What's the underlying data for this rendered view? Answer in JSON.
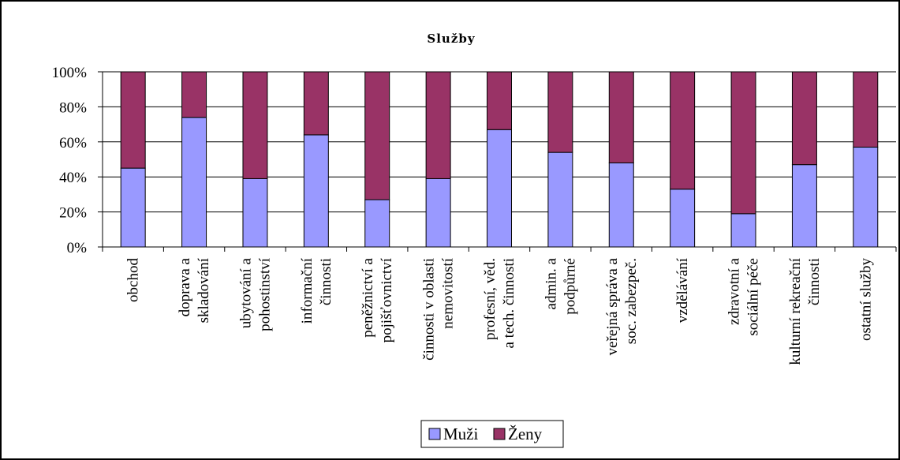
{
  "chart_data": {
    "type": "bar",
    "stacked": true,
    "percent": true,
    "title": "Služby",
    "categories": [
      [
        "obchod"
      ],
      [
        "doprava a",
        "skladování"
      ],
      [
        "ubytování a",
        "pohostinství"
      ],
      [
        "informační",
        "činnosti"
      ],
      [
        "peněžnictví a",
        "pojišťovnictví"
      ],
      [
        "činnosti v oblasti",
        "nemovitostí"
      ],
      [
        "profesní, věd.",
        "a tech. činnosti"
      ],
      [
        "admin. a",
        "podpůrné"
      ],
      [
        "veřejná správa a",
        "soc. zabezpeč."
      ],
      [
        "vzdělávání"
      ],
      [
        "zdravotní a",
        "sociální péče"
      ],
      [
        "kulturní rekreační",
        "činnosti"
      ],
      [
        "ostatní služby"
      ]
    ],
    "series": [
      {
        "name": "Muži",
        "color": "#9999ff",
        "values": [
          45,
          74,
          39,
          64,
          27,
          39,
          67,
          54,
          48,
          33,
          19,
          47,
          57
        ]
      },
      {
        "name": "Ženy",
        "color": "#993366",
        "values": [
          55,
          26,
          61,
          36,
          73,
          61,
          33,
          46,
          52,
          67,
          81,
          53,
          43
        ]
      }
    ],
    "yticks": [
      "0%",
      "20%",
      "40%",
      "60%",
      "80%",
      "100%"
    ],
    "ylim": [
      0,
      100
    ],
    "grid": true,
    "legend_position": "bottom"
  }
}
